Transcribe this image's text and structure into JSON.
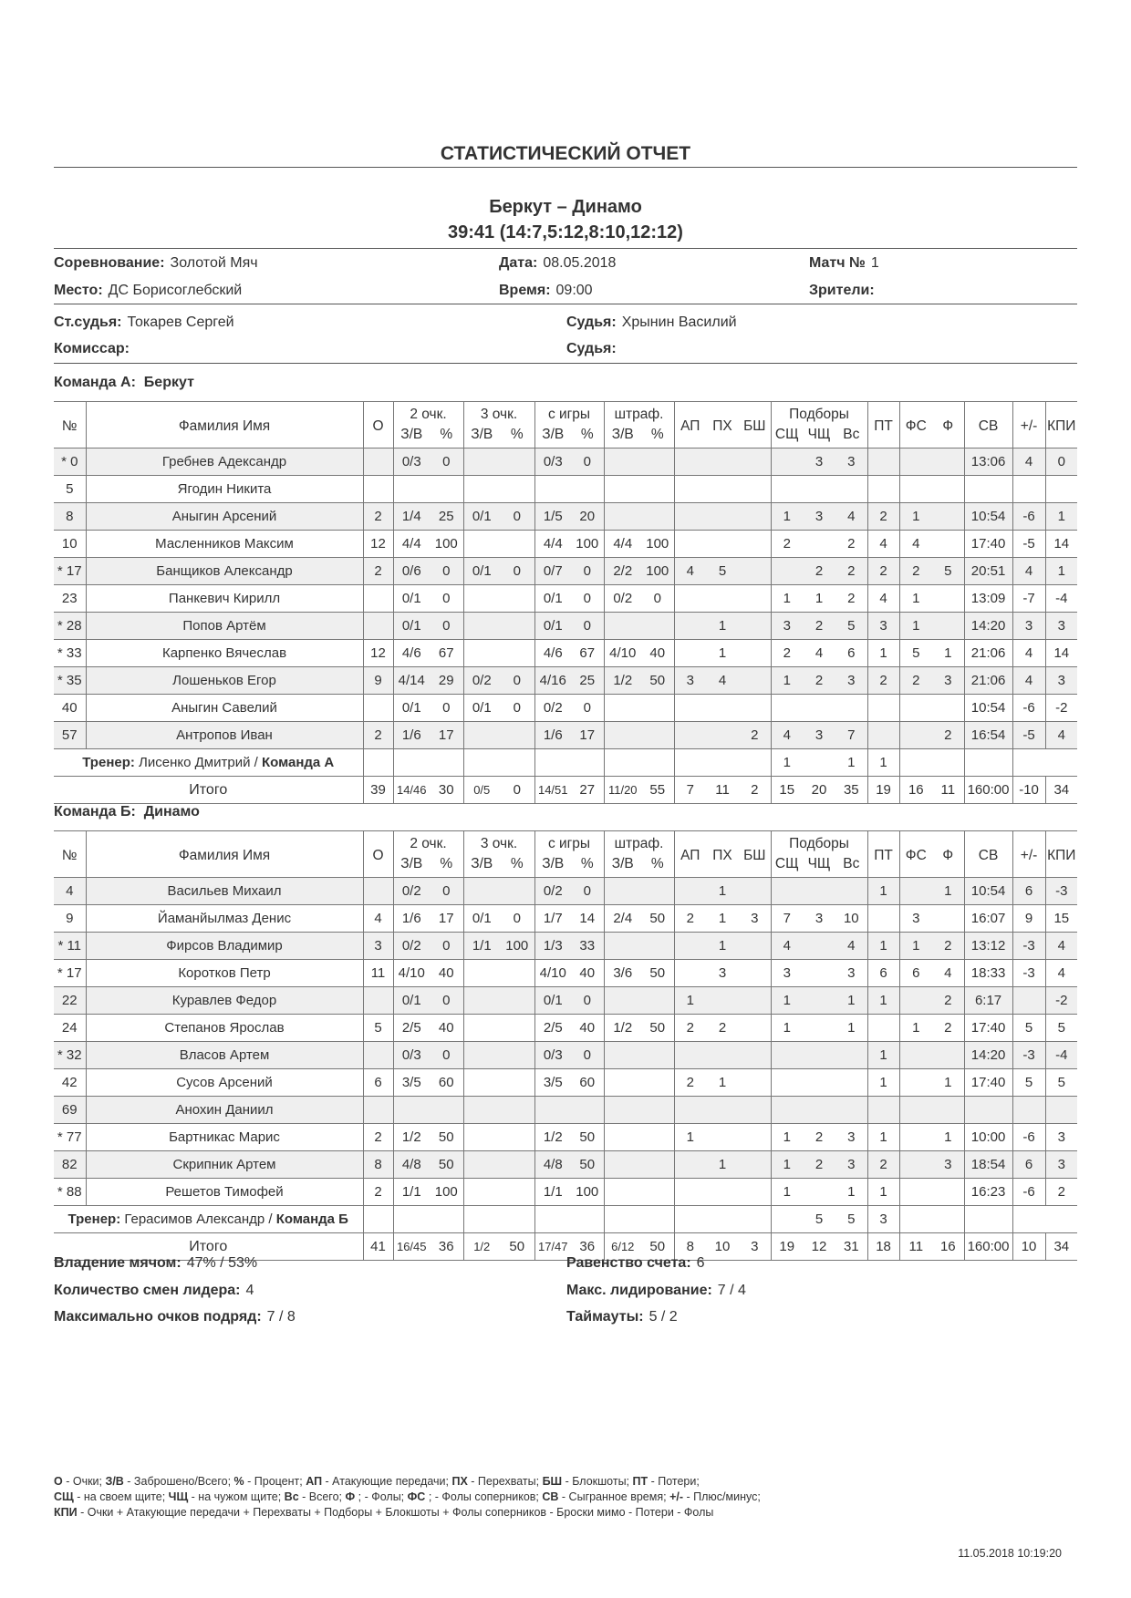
{
  "title": "СТАТИСТИЧЕСКИЙ ОТЧЕТ",
  "match": {
    "teams": "Беркут  – Динамо",
    "score": "39:41 (14:7,5:12,8:10,12:12)"
  },
  "info": {
    "competition_label": "Соревнование:",
    "competition": "Золотой Мяч",
    "date_label": "Дата:",
    "date": "08.05.2018",
    "match_no_label": "Матч №",
    "match_no": "1",
    "place_label": "Место:",
    "place": "ДС Борисоглебский",
    "time_label": "Время:",
    "time": "09:00",
    "spectators_label": "Зрители:",
    "spectators": "",
    "chief_ref_label": "Ст.судья:",
    "chief_ref": "Токарев Сергей",
    "ref1_label": "Судья:",
    "ref1": "Хрынин Василий",
    "commissioner_label": "Комиссар:",
    "commissioner": "",
    "ref2_label": "Судья:",
    "ref2": ""
  },
  "header": {
    "num": "№",
    "name": "Фамилия Имя",
    "pts": "О",
    "fg2": "2 очк.",
    "fg3": "3 очк.",
    "fg": "с игры",
    "ft": "штраф.",
    "made_att": "З/В",
    "pct": "%",
    "ap": "АП",
    "ph": "ПХ",
    "bsh": "БШ",
    "reb": "Подборы",
    "rd": "СЩ",
    "ro": "ЧЩ",
    "rt": "Вс",
    "pt": "ПТ",
    "fs": "ФС",
    "f": "Ф",
    "sv": "СВ",
    "pm": "+/-",
    "kpi": "КПИ"
  },
  "teams": [
    {
      "label": "Команда А:",
      "name": "Беркут",
      "players": [
        [
          "*",
          "0",
          "Гребнев Адександр",
          "",
          "0/3",
          "0",
          "",
          "",
          "0/3",
          "0",
          "",
          "",
          "",
          "",
          "",
          "",
          "3",
          "3",
          "",
          "",
          "",
          "13:06",
          "4",
          "0"
        ],
        [
          "",
          "5",
          "Ягодин Никита",
          "",
          "",
          "",
          "",
          "",
          "",
          "",
          "",
          "",
          "",
          "",
          "",
          "",
          "",
          "",
          "",
          "",
          "",
          "",
          "",
          ""
        ],
        [
          "",
          "8",
          "Аныгин Арсений",
          "2",
          "1/4",
          "25",
          "0/1",
          "0",
          "1/5",
          "20",
          "",
          "",
          "",
          "",
          "",
          "1",
          "3",
          "4",
          "2",
          "1",
          "",
          "10:54",
          "-6",
          "1"
        ],
        [
          "",
          "10",
          "Масленников Максим",
          "12",
          "4/4",
          "100",
          "",
          "",
          "4/4",
          "100",
          "4/4",
          "100",
          "",
          "",
          "",
          "2",
          "",
          "2",
          "4",
          "4",
          "",
          "17:40",
          "-5",
          "14"
        ],
        [
          "*",
          "17",
          "Банщиков Александр",
          "2",
          "0/6",
          "0",
          "0/1",
          "0",
          "0/7",
          "0",
          "2/2",
          "100",
          "4",
          "5",
          "",
          "",
          "2",
          "2",
          "2",
          "2",
          "5",
          "20:51",
          "4",
          "1"
        ],
        [
          "",
          "23",
          "Панкевич Кирилл",
          "",
          "0/1",
          "0",
          "",
          "",
          "0/1",
          "0",
          "0/2",
          "0",
          "",
          "",
          "",
          "1",
          "1",
          "2",
          "4",
          "1",
          "",
          "13:09",
          "-7",
          "-4"
        ],
        [
          "*",
          "28",
          "Попов Артём",
          "",
          "0/1",
          "0",
          "",
          "",
          "0/1",
          "0",
          "",
          "",
          "",
          "1",
          "",
          "3",
          "2",
          "5",
          "3",
          "1",
          "",
          "14:20",
          "3",
          "3"
        ],
        [
          "*",
          "33",
          "Карпенко Вячеслав",
          "12",
          "4/6",
          "67",
          "",
          "",
          "4/6",
          "67",
          "4/10",
          "40",
          "",
          "1",
          "",
          "2",
          "4",
          "6",
          "1",
          "5",
          "1",
          "21:06",
          "4",
          "14"
        ],
        [
          "*",
          "35",
          "Лошеньков Егор",
          "9",
          "4/14",
          "29",
          "0/2",
          "0",
          "4/16",
          "25",
          "1/2",
          "50",
          "3",
          "4",
          "",
          "1",
          "2",
          "3",
          "2",
          "2",
          "3",
          "21:06",
          "4",
          "3"
        ],
        [
          "",
          "40",
          "Аныгин Савелий",
          "",
          "0/1",
          "0",
          "0/1",
          "0",
          "0/2",
          "0",
          "",
          "",
          "",
          "",
          "",
          "",
          "",
          "",
          "",
          "",
          "",
          "10:54",
          "-6",
          "-2"
        ],
        [
          "",
          "57",
          "Антропов Иван",
          "2",
          "1/6",
          "17",
          "",
          "",
          "1/6",
          "17",
          "",
          "",
          "",
          "",
          "2",
          "4",
          "3",
          "7",
          "",
          "",
          "2",
          "16:54",
          "-5",
          "4"
        ]
      ],
      "coach": {
        "label": "Тренер:",
        "name": "Лисенко Дмитрий",
        "team_label": "Команда А",
        "values": [
          "",
          "",
          "",
          "",
          "",
          "",
          "",
          "",
          "",
          "",
          "",
          "1",
          "",
          "1",
          "1",
          "",
          "",
          "",
          "",
          ""
        ]
      },
      "totals": {
        "label": "Итого",
        "values": [
          "39",
          "14/46",
          "30",
          "0/5",
          "0",
          "14/51",
          "27",
          "11/20",
          "55",
          "7",
          "11",
          "2",
          "15",
          "20",
          "35",
          "19",
          "16",
          "11",
          "160:00",
          "-10",
          "34"
        ]
      }
    },
    {
      "label": "Команда Б:",
      "name": "Динамо",
      "players": [
        [
          "",
          "4",
          "Васильев Михаил",
          "",
          "0/2",
          "0",
          "",
          "",
          "0/2",
          "0",
          "",
          "",
          "",
          "1",
          "",
          "",
          "",
          "",
          "1",
          "",
          "1",
          "10:54",
          "6",
          "-3"
        ],
        [
          "",
          "9",
          "Йаманйылмаз Денис",
          "4",
          "1/6",
          "17",
          "0/1",
          "0",
          "1/7",
          "14",
          "2/4",
          "50",
          "2",
          "1",
          "3",
          "7",
          "3",
          "10",
          "",
          "3",
          "",
          "16:07",
          "9",
          "15"
        ],
        [
          "*",
          "11",
          "Фирсов Владимир",
          "3",
          "0/2",
          "0",
          "1/1",
          "100",
          "1/3",
          "33",
          "",
          "",
          "",
          "1",
          "",
          "4",
          "",
          "4",
          "1",
          "1",
          "2",
          "13:12",
          "-3",
          "4"
        ],
        [
          "*",
          "17",
          "Коротков Петр",
          "11",
          "4/10",
          "40",
          "",
          "",
          "4/10",
          "40",
          "3/6",
          "50",
          "",
          "3",
          "",
          "3",
          "",
          "3",
          "6",
          "6",
          "4",
          "18:33",
          "-3",
          "4"
        ],
        [
          "",
          "22",
          "Куравлев Федор",
          "",
          "0/1",
          "0",
          "",
          "",
          "0/1",
          "0",
          "",
          "",
          "1",
          "",
          "",
          "1",
          "",
          "1",
          "1",
          "",
          "2",
          "6:17",
          "",
          "-2"
        ],
        [
          "",
          "24",
          "Степанов Ярослав",
          "5",
          "2/5",
          "40",
          "",
          "",
          "2/5",
          "40",
          "1/2",
          "50",
          "2",
          "2",
          "",
          "1",
          "",
          "1",
          "",
          "1",
          "2",
          "17:40",
          "5",
          "5"
        ],
        [
          "*",
          "32",
          "Власов Артем",
          "",
          "0/3",
          "0",
          "",
          "",
          "0/3",
          "0",
          "",
          "",
          "",
          "",
          "",
          "",
          "",
          "",
          "1",
          "",
          "",
          "14:20",
          "-3",
          "-4"
        ],
        [
          "",
          "42",
          "Сусов Арсений",
          "6",
          "3/5",
          "60",
          "",
          "",
          "3/5",
          "60",
          "",
          "",
          "2",
          "1",
          "",
          "",
          "",
          "",
          "1",
          "",
          "1",
          "17:40",
          "5",
          "5"
        ],
        [
          "",
          "69",
          "Анохин Даниил",
          "",
          "",
          "",
          "",
          "",
          "",
          "",
          "",
          "",
          "",
          "",
          "",
          "",
          "",
          "",
          "",
          "",
          "",
          "",
          "",
          ""
        ],
        [
          "*",
          "77",
          "Бартникас Марис",
          "2",
          "1/2",
          "50",
          "",
          "",
          "1/2",
          "50",
          "",
          "",
          "1",
          "",
          "",
          "1",
          "2",
          "3",
          "1",
          "",
          "1",
          "10:00",
          "-6",
          "3"
        ],
        [
          "",
          "82",
          "Скрипник Артем",
          "8",
          "4/8",
          "50",
          "",
          "",
          "4/8",
          "50",
          "",
          "",
          "",
          "1",
          "",
          "1",
          "2",
          "3",
          "2",
          "",
          "3",
          "18:54",
          "6",
          "3"
        ],
        [
          "*",
          "88",
          "Решетов Тимофей",
          "2",
          "1/1",
          "100",
          "",
          "",
          "1/1",
          "100",
          "",
          "",
          "",
          "",
          "",
          "1",
          "",
          "1",
          "1",
          "",
          "",
          "16:23",
          "-6",
          "2"
        ]
      ],
      "coach": {
        "label": "Тренер:",
        "name": "Герасимов Александр",
        "team_label": "Команда Б",
        "values": [
          "",
          "",
          "",
          "",
          "",
          "",
          "",
          "",
          "",
          "",
          "",
          "",
          "5",
          "5",
          "3",
          "",
          "",
          "",
          "",
          ""
        ]
      },
      "totals": {
        "label": "Итого",
        "values": [
          "41",
          "16/45",
          "36",
          "1/2",
          "50",
          "17/47",
          "36",
          "6/12",
          "50",
          "8",
          "10",
          "3",
          "19",
          "12",
          "31",
          "18",
          "11",
          "16",
          "160:00",
          "10",
          "34"
        ]
      }
    }
  ],
  "summary": {
    "possession_label": "Владение мячом:",
    "possession": "47% / 53%",
    "ties_label": "Равенство счета:",
    "ties": "6",
    "lead_changes_label": "Количество смен лидера:",
    "lead_changes": "4",
    "max_lead_label": "Макс. лидирование:",
    "max_lead": "7 / 4",
    "max_run_label": "Максимально очков подряд:",
    "max_run": "7 / 8",
    "timeouts_label": "Таймауты:",
    "timeouts": "5 / 2"
  },
  "legend": [
    [
      [
        "О",
        " - Очки; "
      ],
      [
        "З/В",
        " - Заброшено/Всего; "
      ],
      [
        "%",
        " - Процент; "
      ],
      [
        "АП",
        " - Атакующие передачи; "
      ],
      [
        "ПХ",
        " - Перехваты; "
      ],
      [
        "БШ",
        " - Блокшоты; "
      ],
      [
        "ПТ",
        " - Потери;"
      ]
    ],
    [
      [
        "СЩ",
        " - на своем щите; "
      ],
      [
        "ЧЩ",
        " - на чужом щите; "
      ],
      [
        "Вс",
        " - Всего; "
      ],
      [
        "Ф",
        " ; - Фолы; "
      ],
      [
        "ФС",
        " ; - Фолы соперников; "
      ],
      [
        "СВ",
        " - Сыгранное время; "
      ],
      [
        "+/-",
        " - Плюс/минус;"
      ]
    ],
    [
      [
        "КПИ",
        " - Очки + Атакующие передачи + Перехваты + Подборы + Блокшоты + Фолы соперников - Броски мимо - Потери - Фолы"
      ]
    ]
  ],
  "printed_at": "11.05.2018    10:19:20"
}
